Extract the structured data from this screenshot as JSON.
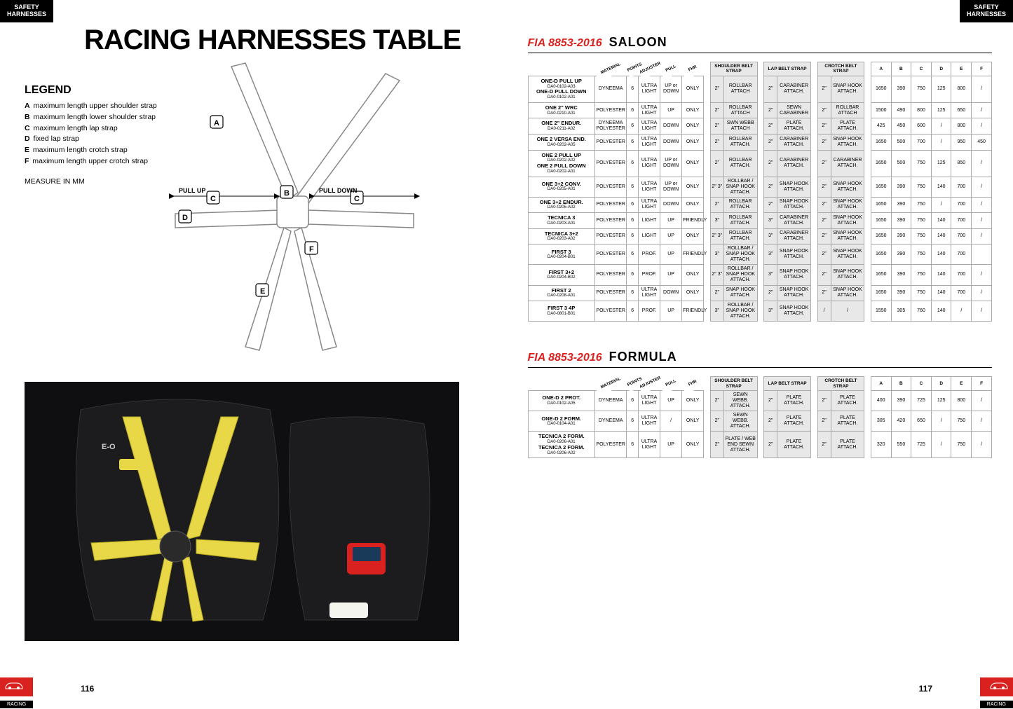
{
  "header_tab": "SAFETY\nHARNESSES",
  "main_title": "RACING HARNESSES TABLE",
  "legend": {
    "title": "LEGEND",
    "items": [
      {
        "k": "A",
        "v": "maximum length upper shoulder strap"
      },
      {
        "k": "B",
        "v": "maximum length lower shoulder strap"
      },
      {
        "k": "C",
        "v": "maximum length lap strap"
      },
      {
        "k": "D",
        "v": "fixed lap strap"
      },
      {
        "k": "E",
        "v": "maximum length crotch strap"
      },
      {
        "k": "F",
        "v": "maximum length upper crotch strap"
      }
    ],
    "measure": "MEASURE IN MM"
  },
  "diagram": {
    "pull_up": "PULL UP",
    "pull_down": "PULL DOWN",
    "markers": [
      "A",
      "B",
      "C",
      "D",
      "E",
      "F"
    ]
  },
  "fia_prefix": "FIA 8853-2016",
  "saloon": {
    "category": "SALOON",
    "headers": {
      "diag": [
        "MATERIAL",
        "POINTS",
        "ADJUSTER",
        "PULL",
        "FHR"
      ],
      "groups": [
        "SHOULDER BELT STRAP",
        "LAP BELT STRAP",
        "CROTCH BELT STRAP"
      ],
      "dims": [
        "A",
        "B",
        "C",
        "D",
        "E",
        "F"
      ]
    },
    "rows": [
      {
        "names": [
          {
            "n": "ONE-D PULL UP",
            "s": "DA0-0102-A03"
          },
          {
            "n": "ONE-D PULL DOWN",
            "s": "DA0-0102-A01"
          }
        ],
        "mat": "DYNEEMA",
        "pts": "6",
        "adj": "ULTRA LIGHT",
        "pull": "UP or DOWN",
        "fhr": "ONLY",
        "sh_sz": "2\"",
        "sh_at": "ROLLBAR ATTACH",
        "lp_sz": "2\"",
        "lp_at": "CARABINER ATTACH.",
        "cr_sz": "2\"",
        "cr_at": "SNAP HOOK ATTACH.",
        "dims": [
          "1650",
          "390",
          "750",
          "125",
          "800",
          "/"
        ]
      },
      {
        "names": [
          {
            "n": "ONE 2\" WRC",
            "s": "DA0-0210-A01"
          }
        ],
        "mat": "POLYESTER",
        "pts": "6",
        "adj": "ULTRA LIGHT",
        "pull": "UP",
        "fhr": "ONLY",
        "sh_sz": "2\"",
        "sh_at": "ROLLBAR ATTACH",
        "lp_sz": "2\"",
        "lp_at": "SEWN CARABINER",
        "cr_sz": "2\"",
        "cr_at": "ROLLBAR ATTACH",
        "dims": [
          "1500",
          "490",
          "800",
          "125",
          "650",
          "/"
        ]
      },
      {
        "names": [
          {
            "n": "ONE 2\" ENDUR.",
            "s": "DA0-0211-A02"
          }
        ],
        "mat": "DYNEEMA POLYESTER",
        "pts": "6",
        "adj": "ULTRA LIGHT",
        "pull": "DOWN",
        "fhr": "ONLY",
        "sh_sz": "2\"",
        "sh_at": "SWN WEBB ATTACH",
        "lp_sz": "2\"",
        "lp_at": "PLATE ATTACH.",
        "cr_sz": "2\"",
        "cr_at": "PLATE ATTACH.",
        "dims": [
          "425",
          "450",
          "600",
          "/",
          "800",
          "/"
        ]
      },
      {
        "names": [
          {
            "n": "ONE 2 VERSA END.",
            "s": "DA0-0202-A05"
          }
        ],
        "mat": "POLYESTER",
        "pts": "6",
        "adj": "ULTRA LIGHT",
        "pull": "DOWN",
        "fhr": "ONLY",
        "sh_sz": "2\"",
        "sh_at": "ROLLBAR ATTACH.",
        "lp_sz": "2\"",
        "lp_at": "CARABINER ATTACH.",
        "cr_sz": "2\"",
        "cr_at": "SNAP HOOK ATTACH.",
        "dims": [
          "1650",
          "500",
          "700",
          "/",
          "950",
          "450"
        ]
      },
      {
        "names": [
          {
            "n": "ONE 2 PULL UP",
            "s": "DA0-0202-A02"
          },
          {
            "n": "ONE 2 PULL DOWN",
            "s": "DA0-0202-A01"
          }
        ],
        "mat": "POLYESTER",
        "pts": "6",
        "adj": "ULTRA LIGHT",
        "pull": "UP or DOWN",
        "fhr": "ONLY",
        "sh_sz": "2\"",
        "sh_at": "ROLLBAR ATTACH.",
        "lp_sz": "2\"",
        "lp_at": "CARABINER ATTACH.",
        "cr_sz": "2\"",
        "cr_at": "CARABINER ATTACH.",
        "dims": [
          "1650",
          "500",
          "750",
          "125",
          "850",
          "/"
        ]
      },
      {
        "names": [
          {
            "n": "ONE 3+2 CONV.",
            "s": "DA0-0205-A01"
          }
        ],
        "mat": "POLYESTER",
        "pts": "6",
        "adj": "ULTRA LIGHT",
        "pull": "UP or DOWN",
        "fhr": "ONLY",
        "sh_sz": "2\" 3\"",
        "sh_at": "ROLLBAR / SNAP HOOK ATTACH.",
        "lp_sz": "2\"",
        "lp_at": "SNAP HOOK ATTACH.",
        "cr_sz": "2\"",
        "cr_at": "SNAP HOOK ATTACH.",
        "dims": [
          "1650",
          "390",
          "750",
          "140",
          "700",
          "/"
        ]
      },
      {
        "names": [
          {
            "n": "ONE 3+2 ENDUR.",
            "s": "DA0-0205-A02"
          }
        ],
        "mat": "POLYESTER",
        "pts": "6",
        "adj": "ULTRA LIGHT",
        "pull": "DOWN",
        "fhr": "ONLY",
        "sh_sz": "2\"",
        "sh_at": "ROLLBAR ATTACH.",
        "lp_sz": "2\"",
        "lp_at": "SNAP HOOK ATTACH.",
        "cr_sz": "2\"",
        "cr_at": "SNAP HOOK ATTACH.",
        "dims": [
          "1650",
          "390",
          "750",
          "/",
          "700",
          "/"
        ]
      },
      {
        "names": [
          {
            "n": "TECNICA 3",
            "s": "DA0-0203-A01"
          }
        ],
        "mat": "POLYESTER",
        "pts": "6",
        "adj": "LIGHT",
        "pull": "UP",
        "fhr": "FRIENDLY",
        "sh_sz": "3\"",
        "sh_at": "ROLLBAR ATTACH.",
        "lp_sz": "3\"",
        "lp_at": "CARABINER ATTACH.",
        "cr_sz": "2\"",
        "cr_at": "SNAP HOOK ATTACH.",
        "dims": [
          "1650",
          "390",
          "750",
          "140",
          "700",
          "/"
        ]
      },
      {
        "names": [
          {
            "n": "TECNICA 3+2",
            "s": "DA0-0203-A02"
          }
        ],
        "mat": "POLYESTER",
        "pts": "6",
        "adj": "LIGHT",
        "pull": "UP",
        "fhr": "ONLY",
        "sh_sz": "2\" 3\"",
        "sh_at": "ROLLBAR ATTACH.",
        "lp_sz": "3\"",
        "lp_at": "CARABINER ATTACH.",
        "cr_sz": "2\"",
        "cr_at": "SNAP HOOK ATTACH.",
        "dims": [
          "1650",
          "390",
          "750",
          "140",
          "700",
          "/"
        ]
      },
      {
        "names": [
          {
            "n": "FIRST 3",
            "s": "DA0-0204-B01"
          }
        ],
        "mat": "POLYESTER",
        "pts": "6",
        "adj": "PROF.",
        "pull": "UP",
        "fhr": "FRIENDLY",
        "sh_sz": "3\"",
        "sh_at": "ROLLBAR / SNAP HOOK ATTACH.",
        "lp_sz": "3\"",
        "lp_at": "SNAP HOOK ATTACH.",
        "cr_sz": "2\"",
        "cr_at": "SNAP HOOK ATTACH.",
        "dims": [
          "1650",
          "390",
          "750",
          "140",
          "700",
          ""
        ]
      },
      {
        "names": [
          {
            "n": "FIRST 3+2",
            "s": "DA0-0204-B02"
          }
        ],
        "mat": "POLYESTER",
        "pts": "6",
        "adj": "PROF.",
        "pull": "UP",
        "fhr": "ONLY",
        "sh_sz": "2\" 3\"",
        "sh_at": "ROLLBAR / SNAP HOOK ATTACH.",
        "lp_sz": "3\"",
        "lp_at": "SNAP HOOK ATTACH.",
        "cr_sz": "2\"",
        "cr_at": "SNAP HOOK ATTACH.",
        "dims": [
          "1650",
          "390",
          "750",
          "140",
          "700",
          "/"
        ]
      },
      {
        "names": [
          {
            "n": "FIRST 2",
            "s": "DA0-0208-A01"
          }
        ],
        "mat": "POLYESTER",
        "pts": "6",
        "adj": "ULTRA LIGHT",
        "pull": "DOWN",
        "fhr": "ONLY",
        "sh_sz": "2\"",
        "sh_at": "SNAP HOOK ATTACH.",
        "lp_sz": "2\"",
        "lp_at": "SNAP HOOK ATTACH.",
        "cr_sz": "2\"",
        "cr_at": "SNAP HOOK ATTACH.",
        "dims": [
          "1650",
          "390",
          "750",
          "140",
          "700",
          "/"
        ]
      },
      {
        "names": [
          {
            "n": "FIRST 3 4P",
            "s": "DA0-0801-B01"
          }
        ],
        "mat": "POLYESTER",
        "pts": "6",
        "adj": "PROF.",
        "pull": "UP",
        "fhr": "FRIENDLY",
        "sh_sz": "3\"",
        "sh_at": "ROLLBAR / SNAP HOOK ATTACH.",
        "lp_sz": "3\"",
        "lp_at": "SNAP HOOK ATTACH.",
        "cr_sz": "/",
        "cr_at": "/",
        "dims": [
          "1550",
          "305",
          "760",
          "140",
          "/",
          "/"
        ]
      }
    ]
  },
  "formula": {
    "category": "FORMULA",
    "rows": [
      {
        "names": [
          {
            "n": "ONE-D 2 PROT.",
            "s": "DA0-0102-A05"
          }
        ],
        "mat": "DYNEEMA",
        "pts": "6",
        "adj": "ULTRA LIGHT",
        "pull": "UP",
        "fhr": "ONLY",
        "sh_sz": "2\"",
        "sh_at": "SEWN WEBB. ATTACH.",
        "lp_sz": "2\"",
        "lp_at": "PLATE ATTACH.",
        "cr_sz": "2\"",
        "cr_at": "PLATE ATTACH.",
        "dims": [
          "400",
          "390",
          "725",
          "125",
          "800",
          "/"
        ]
      },
      {
        "names": [
          {
            "n": "ONE-D 2 FORM.",
            "s": "DA0-0104-A01"
          }
        ],
        "mat": "DYNEEMA",
        "pts": "6",
        "adj": "ULTRA LIGHT",
        "pull": "/",
        "fhr": "ONLY",
        "sh_sz": "2\"",
        "sh_at": "SEWN WEBB. ATTACH.",
        "lp_sz": "2\"",
        "lp_at": "PLATE ATTACH.",
        "cr_sz": "2\"",
        "cr_at": "PLATE ATTACH.",
        "dims": [
          "305",
          "420",
          "650",
          "/",
          "750",
          "/"
        ]
      },
      {
        "names": [
          {
            "n": "TECNICA 2 FORM.",
            "s": "DA0-0206-A01"
          },
          {
            "n": "TECNICA 2 FORM.",
            "s": "DA0-0206-A02"
          }
        ],
        "mat": "POLYESTER",
        "pts": "6",
        "adj": "ULTRA LIGHT",
        "pull": "UP",
        "fhr": "ONLY",
        "sh_sz": "2\"",
        "sh_at": "PLATE / WEB END SEWN ATTACH.",
        "lp_sz": "2\"",
        "lp_at": "PLATE ATTACH.",
        "cr_sz": "2\"",
        "cr_at": "PLATE ATTACH.",
        "dims": [
          "320",
          "550",
          "725",
          "/",
          "750",
          "/"
        ]
      }
    ]
  },
  "page_left_num": "116",
  "page_right_num": "117",
  "racing_label": "RACING",
  "colors": {
    "accent": "#d9221f",
    "grey": "#e8e8e8",
    "border": "#aaaaaa"
  }
}
